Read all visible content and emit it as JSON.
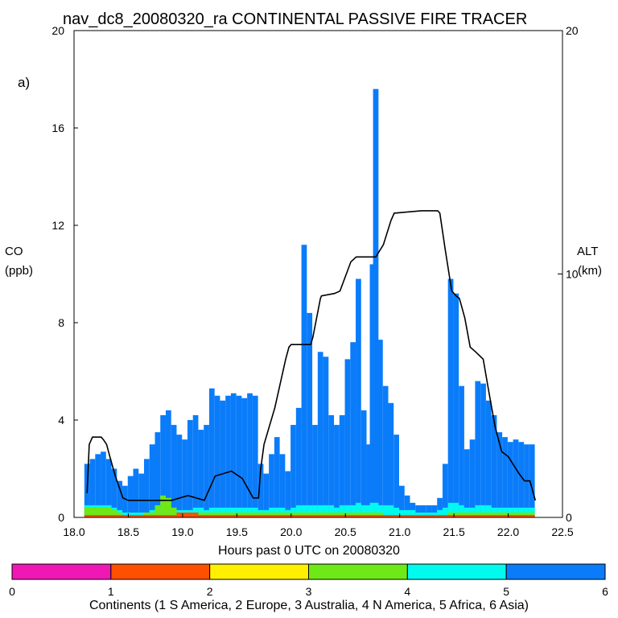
{
  "chart_data": {
    "type": "bar",
    "title": "nav_dc8_20080320_ra CONTINENTAL PASSIVE FIRE TRACER",
    "panel_label": "a)",
    "xlabel": "Hours past 0 UTC on 20080320",
    "ylabel_left_line1": "CO",
    "ylabel_left_line2": "(ppb)",
    "ylabel_right_line1": "ALT",
    "ylabel_right_line2": "(km)",
    "xlim": [
      18.0,
      22.5
    ],
    "ylim_left": [
      0,
      20
    ],
    "ylim_right": [
      0,
      20
    ],
    "x_ticks": [
      "18.0",
      "18.5",
      "19.0",
      "19.5",
      "20.0",
      "20.5",
      "21.0",
      "21.5",
      "22.0",
      "22.5"
    ],
    "y_left_ticks": [
      "0",
      "4",
      "8",
      "12",
      "16",
      "20"
    ],
    "y_right_ticks": [
      "0",
      "10",
      "20"
    ],
    "series": [
      {
        "name": "Asia (6)",
        "color": "#0A7CFA",
        "x": [
          18.12,
          18.17,
          18.22,
          18.27,
          18.32,
          18.37,
          18.42,
          18.47,
          18.52,
          18.57,
          18.62,
          18.67,
          18.72,
          18.77,
          18.82,
          18.87,
          18.92,
          18.97,
          19.02,
          19.07,
          19.12,
          19.17,
          19.22,
          19.27,
          19.32,
          19.37,
          19.42,
          19.47,
          19.52,
          19.57,
          19.62,
          19.67,
          19.72,
          19.77,
          19.82,
          19.87,
          19.92,
          19.97,
          20.02,
          20.07,
          20.12,
          20.17,
          20.22,
          20.27,
          20.32,
          20.37,
          20.42,
          20.47,
          20.52,
          20.57,
          20.62,
          20.67,
          20.72,
          20.75,
          20.78,
          20.82,
          20.87,
          20.92,
          20.97,
          21.02,
          21.07,
          21.12,
          21.17,
          21.22,
          21.27,
          21.32,
          21.37,
          21.42,
          21.47,
          21.52,
          21.57,
          21.62,
          21.67,
          21.72,
          21.77,
          21.82,
          21.87,
          21.92,
          21.97,
          22.02,
          22.07,
          22.12,
          22.17,
          22.22
        ],
        "values": [
          2.2,
          2.4,
          2.6,
          2.7,
          2.4,
          2.0,
          1.5,
          1.3,
          1.7,
          2.0,
          1.8,
          2.4,
          3.0,
          3.5,
          4.2,
          4.4,
          3.8,
          3.4,
          3.2,
          4.0,
          4.2,
          3.6,
          3.8,
          5.3,
          5.0,
          4.8,
          5.0,
          5.1,
          5.0,
          4.9,
          5.1,
          5.0,
          2.2,
          1.8,
          2.6,
          3.3,
          2.6,
          1.9,
          3.8,
          4.5,
          11.2,
          8.4,
          3.8,
          6.8,
          6.6,
          4.2,
          3.8,
          4.2,
          6.5,
          7.2,
          9.8,
          4.4,
          3.0,
          10.4,
          17.6,
          7.3,
          5.4,
          4.7,
          3.4,
          1.3,
          0.9,
          0.6,
          0.5,
          0.5,
          0.5,
          0.5,
          0.8,
          2.2,
          9.8,
          9.2,
          5.4,
          2.8,
          3.2,
          5.6,
          5.5,
          4.8,
          4.2,
          3.5,
          3.3,
          3.1,
          3.2,
          3.1,
          3.0,
          3.0
        ]
      },
      {
        "name": "Africa (5)",
        "color": "#00FAEE",
        "x": [
          18.12,
          18.17,
          18.22,
          18.27,
          18.32,
          18.37,
          18.42,
          18.47,
          18.52,
          18.57,
          18.62,
          18.67,
          18.72,
          18.77,
          18.82,
          18.87,
          18.92,
          18.97,
          19.02,
          19.07,
          19.12,
          19.17,
          19.22,
          19.27,
          19.32,
          19.37,
          19.42,
          19.47,
          19.52,
          19.57,
          19.62,
          19.67,
          19.72,
          19.77,
          19.82,
          19.87,
          19.92,
          19.97,
          20.02,
          20.07,
          20.12,
          20.17,
          20.22,
          20.27,
          20.32,
          20.37,
          20.42,
          20.47,
          20.52,
          20.57,
          20.62,
          20.67,
          20.72,
          20.75,
          20.78,
          20.82,
          20.87,
          20.92,
          20.97,
          21.02,
          21.07,
          21.12,
          21.17,
          21.22,
          21.27,
          21.32,
          21.37,
          21.42,
          21.47,
          21.52,
          21.57,
          21.62,
          21.67,
          21.72,
          21.77,
          21.82,
          21.87,
          21.92,
          21.97,
          22.02,
          22.07,
          22.12,
          22.17,
          22.22
        ],
        "values": [
          0.5,
          0.5,
          0.5,
          0.5,
          0.5,
          0.4,
          0.3,
          0.2,
          0.2,
          0.2,
          0.2,
          0.2,
          0.3,
          0.3,
          0.4,
          0.4,
          0.4,
          0.3,
          0.3,
          0.3,
          0.4,
          0.4,
          0.3,
          0.4,
          0.4,
          0.4,
          0.4,
          0.4,
          0.4,
          0.4,
          0.4,
          0.4,
          0.3,
          0.3,
          0.4,
          0.4,
          0.4,
          0.3,
          0.4,
          0.5,
          0.5,
          0.5,
          0.5,
          0.5,
          0.5,
          0.5,
          0.4,
          0.5,
          0.5,
          0.5,
          0.6,
          0.5,
          0.5,
          0.6,
          0.6,
          0.5,
          0.5,
          0.5,
          0.4,
          0.3,
          0.3,
          0.3,
          0.2,
          0.2,
          0.2,
          0.2,
          0.3,
          0.4,
          0.6,
          0.6,
          0.5,
          0.4,
          0.4,
          0.5,
          0.5,
          0.5,
          0.4,
          0.4,
          0.4,
          0.4,
          0.4,
          0.4,
          0.4,
          0.4
        ]
      },
      {
        "name": "N America (4)",
        "color": "#6EE816",
        "x": [
          18.12,
          18.17,
          18.22,
          18.27,
          18.32,
          18.37,
          18.42,
          18.47,
          18.52,
          18.57,
          18.62,
          18.67,
          18.72,
          18.77,
          18.82,
          18.87,
          18.92,
          18.97,
          19.02,
          19.07,
          19.12,
          19.17,
          19.22,
          19.27,
          19.32,
          19.37,
          19.42,
          19.47,
          19.52,
          19.57,
          19.62,
          19.67,
          19.72,
          19.77,
          19.82,
          19.87,
          19.92,
          19.97,
          20.02,
          20.07,
          20.12,
          20.17,
          20.22,
          20.27,
          20.32,
          20.37,
          20.42,
          20.47,
          20.52,
          20.57,
          20.62,
          20.67,
          20.72,
          20.75,
          20.78,
          20.82,
          20.87,
          20.92,
          20.97,
          21.02,
          21.07,
          21.12,
          21.17,
          21.22,
          21.27,
          21.32,
          21.37,
          21.42,
          21.47,
          21.52,
          21.57,
          21.62,
          21.67,
          21.72,
          21.77,
          21.82,
          21.87,
          21.92,
          21.97,
          22.02,
          22.07,
          22.12,
          22.17,
          22.22
        ],
        "values": [
          0.4,
          0.4,
          0.4,
          0.4,
          0.4,
          0.3,
          0.2,
          0.1,
          0.1,
          0.1,
          0.1,
          0.2,
          0.2,
          0.5,
          0.9,
          0.8,
          0.4,
          0.2,
          0.2,
          0.2,
          0.2,
          0.2,
          0.2,
          0.2,
          0.2,
          0.2,
          0.2,
          0.2,
          0.2,
          0.2,
          0.2,
          0.2,
          0.2,
          0.2,
          0.2,
          0.2,
          0.2,
          0.2,
          0.2,
          0.2,
          0.2,
          0.2,
          0.2,
          0.2,
          0.2,
          0.2,
          0.2,
          0.2,
          0.2,
          0.2,
          0.2,
          0.2,
          0.2,
          0.2,
          0.2,
          0.2,
          0.1,
          0.1,
          0.1,
          0.1,
          0.1,
          0.1,
          0.1,
          0.1,
          0.1,
          0.1,
          0.1,
          0.1,
          0.2,
          0.2,
          0.2,
          0.2,
          0.2,
          0.2,
          0.2,
          0.2,
          0.2,
          0.2,
          0.2,
          0.2,
          0.2,
          0.2,
          0.2,
          0.2
        ]
      },
      {
        "name": "Europe (2)",
        "color": "#FF5000",
        "x": [
          18.12,
          18.17,
          18.22,
          18.27,
          18.32,
          18.37,
          18.42,
          18.47,
          18.52,
          18.57,
          18.62,
          18.67,
          18.72,
          18.77,
          18.82,
          18.87,
          18.92,
          18.97,
          19.02,
          19.07,
          19.12,
          19.17,
          19.22,
          19.27,
          19.32,
          19.37,
          19.42,
          19.47,
          19.52,
          19.57,
          19.62,
          19.67,
          19.72,
          19.77,
          19.82,
          19.87,
          19.92,
          19.97,
          20.02,
          20.07,
          20.12,
          20.17,
          20.22,
          20.27,
          20.32,
          20.37,
          20.42,
          20.47,
          20.52,
          20.57,
          20.62,
          20.67,
          20.72,
          20.75,
          20.78,
          20.82,
          20.87,
          20.92,
          20.97,
          21.02,
          21.07,
          21.12,
          21.17,
          21.22,
          21.27,
          21.32,
          21.37,
          21.42,
          21.47,
          21.52,
          21.57,
          21.62,
          21.67,
          21.72,
          21.77,
          21.82,
          21.87,
          21.92,
          21.97,
          22.02,
          22.07,
          22.12,
          22.17,
          22.22
        ],
        "values": [
          0.1,
          0.1,
          0.1,
          0.1,
          0.1,
          0.1,
          0.1,
          0.1,
          0.1,
          0.1,
          0.1,
          0.1,
          0.1,
          0.1,
          0.1,
          0.1,
          0.1,
          0.2,
          0.2,
          0.2,
          0.2,
          0.1,
          0.1,
          0.1,
          0.1,
          0.1,
          0.1,
          0.1,
          0.1,
          0.1,
          0.1,
          0.1,
          0.1,
          0.1,
          0.1,
          0.1,
          0.1,
          0.1,
          0.1,
          0.1,
          0.1,
          0.1,
          0.1,
          0.1,
          0.1,
          0.1,
          0.1,
          0.1,
          0.1,
          0.1,
          0.1,
          0.1,
          0.1,
          0.1,
          0.1,
          0.1,
          0.1,
          0.1,
          0.1,
          0.1,
          0.1,
          0.1,
          0.1,
          0.1,
          0.1,
          0.1,
          0.1,
          0.1,
          0.1,
          0.1,
          0.1,
          0.1,
          0.1,
          0.1,
          0.1,
          0.1,
          0.1,
          0.1,
          0.1,
          0.1,
          0.1,
          0.1,
          0.1,
          0.1
        ]
      }
    ],
    "altitude_line": {
      "name": "Aircraft altitude (km)",
      "axis": "right",
      "x": [
        18.12,
        18.14,
        18.17,
        18.25,
        18.27,
        18.3,
        18.33,
        18.38,
        18.45,
        18.5,
        18.9,
        19.05,
        19.2,
        19.3,
        19.45,
        19.55,
        19.65,
        19.7,
        19.72,
        19.75,
        19.85,
        19.95,
        19.98,
        20.0,
        20.18,
        20.2,
        20.27,
        20.28,
        20.4,
        20.45,
        20.55,
        20.6,
        20.78,
        20.85,
        20.92,
        20.95,
        21.2,
        21.35,
        21.37,
        21.42,
        21.48,
        21.52,
        21.55,
        21.6,
        21.65,
        21.7,
        21.77,
        21.82,
        21.88,
        21.94,
        22.0,
        22.1,
        22.15,
        22.2,
        22.25
      ],
      "values": [
        1.0,
        3.0,
        3.3,
        3.3,
        3.2,
        3.0,
        2.5,
        1.7,
        0.8,
        0.7,
        0.7,
        0.9,
        0.7,
        1.7,
        1.9,
        1.6,
        0.8,
        0.8,
        2.0,
        3.0,
        4.5,
        6.5,
        7.0,
        7.1,
        7.1,
        7.4,
        9.0,
        9.1,
        9.2,
        9.3,
        10.5,
        10.7,
        10.7,
        11.2,
        12.2,
        12.5,
        12.6,
        12.6,
        12.5,
        11.0,
        9.3,
        9.1,
        9.0,
        8.2,
        7.0,
        6.8,
        6.5,
        5.2,
        3.7,
        2.7,
        2.5,
        1.8,
        1.5,
        1.5,
        0.7
      ]
    },
    "colorbar": {
      "ticks": [
        "0",
        "1",
        "2",
        "3",
        "4",
        "5",
        "6"
      ],
      "colors": [
        "#F018B4",
        "#FF5000",
        "#FFF000",
        "#6EE816",
        "#00FAEE",
        "#0A7CFA"
      ],
      "label": "Continents (1 S America, 2 Europe, 3 Australia, 4 N America, 5 Africa, 6 Asia)"
    }
  }
}
